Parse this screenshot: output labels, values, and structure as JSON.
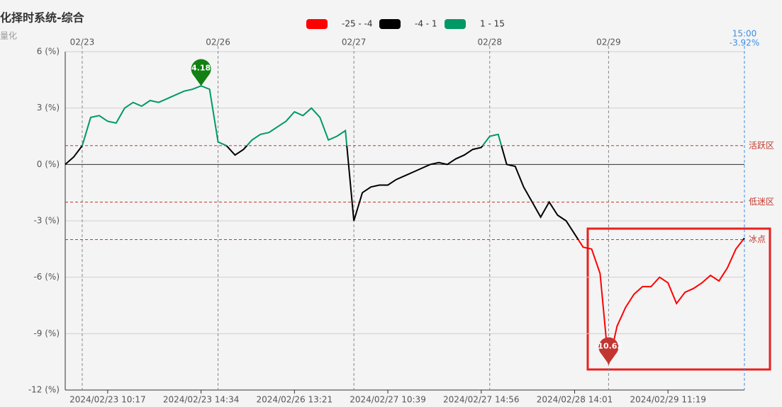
{
  "chart_data": {
    "type": "line",
    "title": "化择时系统-综合",
    "subtitle": "量化",
    "categories": [
      null,
      null,
      null,
      null,
      null,
      "2024/02/23 10:17",
      null,
      null,
      null,
      null,
      null,
      null,
      null,
      null,
      null,
      null,
      "2024/02/23 14:34",
      null,
      null,
      null,
      null,
      null,
      null,
      null,
      null,
      null,
      null,
      "2024/02/26 13:21",
      null,
      null,
      null,
      null,
      null,
      null,
      null,
      null,
      null,
      null,
      "2024/02/27 10:39",
      null,
      null,
      null,
      null,
      null,
      null,
      null,
      null,
      null,
      null,
      "2024/02/27 14:56",
      null,
      null,
      null,
      null,
      null,
      null,
      null,
      null,
      null,
      null,
      "2024/02/28 14:01",
      null,
      null,
      null,
      null,
      null,
      null,
      null,
      null,
      null,
      null,
      "2024/02/29 11:19",
      null,
      null,
      null,
      null,
      null,
      null,
      null,
      null,
      null
    ],
    "series": [
      {
        "values": [
          0,
          0.4,
          1.0,
          2.5,
          2.6,
          2.3,
          2.2,
          3.0,
          3.3,
          3.1,
          3.4,
          3.3,
          3.5,
          3.7,
          3.9,
          4.0,
          4.18,
          4.0,
          1.2,
          1.0,
          0.5,
          0.8,
          1.3,
          1.6,
          1.7,
          2.0,
          2.3,
          2.8,
          2.6,
          3.0,
          2.5,
          1.3,
          1.5,
          1.8,
          -3.0,
          -1.5,
          -1.2,
          -1.1,
          -1.1,
          -0.8,
          -0.6,
          -0.4,
          -0.2,
          0.0,
          0.1,
          0.0,
          0.3,
          0.5,
          0.8,
          0.9,
          1.5,
          1.6,
          0.0,
          -0.1,
          -1.2,
          -2.0,
          -2.8,
          -2.0,
          -2.7,
          -3.0,
          -3.7,
          -4.4,
          -4.5,
          -5.8,
          -10.62,
          -8.6,
          -7.6,
          -6.9,
          -6.5,
          -6.5,
          -6.0,
          -6.3,
          -7.4,
          -6.8,
          -6.6,
          -6.3,
          -5.9,
          -6.2,
          -5.5,
          -4.5,
          -3.92
        ]
      }
    ],
    "pieces": [
      {
        "min": -25,
        "max": -4,
        "color": "#ff0000",
        "label": "-25 - -4"
      },
      {
        "min": -4,
        "max": 1,
        "color": "#000000",
        "label": "-4 - 1"
      },
      {
        "min": 1,
        "max": 15,
        "color": "#009966",
        "label": "1 - 15"
      }
    ],
    "ylim": [
      -12,
      6
    ],
    "yticks": [
      {
        "value": 6,
        "label": "6 (%)"
      },
      {
        "value": 3,
        "label": "3 (%)"
      },
      {
        "value": 0,
        "label": "0 (%)"
      },
      {
        "value": -3,
        "label": "-3 (%)"
      },
      {
        "value": -6,
        "label": "-6 (%)"
      },
      {
        "value": -9,
        "label": "-9 (%)"
      },
      {
        "value": -12,
        "label": "-12 (%)"
      }
    ],
    "grid": true,
    "mark_lines": [
      {
        "value": 1,
        "label": "活跃区"
      },
      {
        "value": -2,
        "label": "低迷区"
      },
      {
        "value": -4,
        "label": "冰点"
      }
    ],
    "mark_line_color": "#c0392b",
    "day_lines": [
      {
        "at": 2,
        "label": "02/23"
      },
      {
        "at": 18,
        "label": "02/26"
      },
      {
        "at": 34,
        "label": "02/27"
      },
      {
        "at": 50,
        "label": "02/28"
      },
      {
        "at": 64,
        "label": "02/29"
      }
    ],
    "end_label": {
      "time": "15:00",
      "text": "-3.92%"
    },
    "markers": [
      {
        "index": 16,
        "color": "#138013"
      },
      {
        "index": 64,
        "color": "#c23531"
      }
    ]
  }
}
